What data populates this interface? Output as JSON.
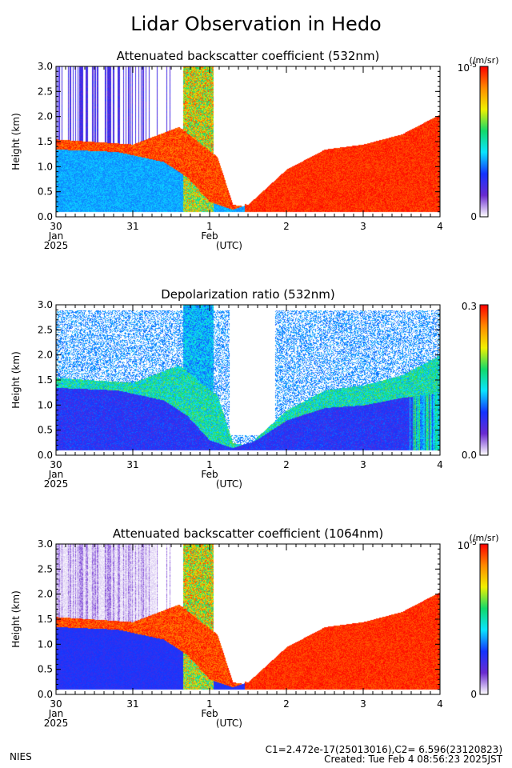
{
  "title": "Lidar Observation in Hedo",
  "footer": {
    "left": "NIES",
    "constants": "C1=2.472e-17(25013016),C2= 6.596(23120823)",
    "created": "Created: Tue Feb  4 08:56:23 2025JST"
  },
  "colors": {
    "scale": [
      "#ffffff",
      "#6a2bd0",
      "#1434ff",
      "#0ae4ff",
      "#12d96a",
      "#f0f000",
      "#ff8a00",
      "#ff0000"
    ],
    "axis": "#000000",
    "background": "#ffffff"
  },
  "chart_data": [
    {
      "type": "heatmap",
      "title": "Attenuated backscatter coefficient (532nm)",
      "ylabel": "Height (km)",
      "xlabel": "(UTC)",
      "xlim": [
        "2025-01-30T00:00",
        "2025-02-04T00:00"
      ],
      "ylim": [
        0.0,
        3.0
      ],
      "yticks": [
        "0.0",
        "0.5",
        "1.0",
        "1.5",
        "2.0",
        "2.5",
        "3.0"
      ],
      "xticks": [
        "30",
        "31",
        "1",
        "2",
        "3",
        "4"
      ],
      "xsublabels": [
        [
          "Jan",
          "2025"
        ],
        [],
        [
          "Feb"
        ],
        [],
        [],
        []
      ],
      "colorbar": {
        "unit": "(/m/sr)",
        "max": "10",
        "max_exp": "-5",
        "min": "0"
      },
      "variable": "backscatter532"
    },
    {
      "type": "heatmap",
      "title": "Depolarization ratio (532nm)",
      "ylabel": "Height (km)",
      "xlabel": "(UTC)",
      "xlim": [
        "2025-01-30T00:00",
        "2025-02-04T00:00"
      ],
      "ylim": [
        0.0,
        3.0
      ],
      "yticks": [
        "0.0",
        "0.5",
        "1.0",
        "1.5",
        "2.0",
        "2.5",
        "3.0"
      ],
      "xticks": [
        "30",
        "31",
        "1",
        "2",
        "3",
        "4"
      ],
      "xsublabels": [
        [
          "Jan",
          "2025"
        ],
        [],
        [
          "Feb"
        ],
        [],
        [],
        []
      ],
      "colorbar": {
        "unit": "",
        "max": "0.3",
        "max_exp": "",
        "min": "0.0"
      },
      "variable": "depol532"
    },
    {
      "type": "heatmap",
      "title": "Attenuated backscatter coefficient (1064nm)",
      "ylabel": "Height (km)",
      "xlabel": "(UTC)",
      "xlim": [
        "2025-01-30T00:00",
        "2025-02-04T00:00"
      ],
      "ylim": [
        0.0,
        3.0
      ],
      "yticks": [
        "0.0",
        "0.5",
        "1.0",
        "1.5",
        "2.0",
        "2.5",
        "3.0"
      ],
      "xticks": [
        "30",
        "31",
        "1",
        "2",
        "3",
        "4"
      ],
      "xsublabels": [
        [
          "Jan",
          "2025"
        ],
        [],
        [
          "Feb"
        ],
        [],
        [],
        []
      ],
      "colorbar": {
        "unit": "(/m/sr)",
        "max": "10",
        "max_exp": "-5",
        "min": "0"
      },
      "variable": "backscatter1064"
    }
  ]
}
